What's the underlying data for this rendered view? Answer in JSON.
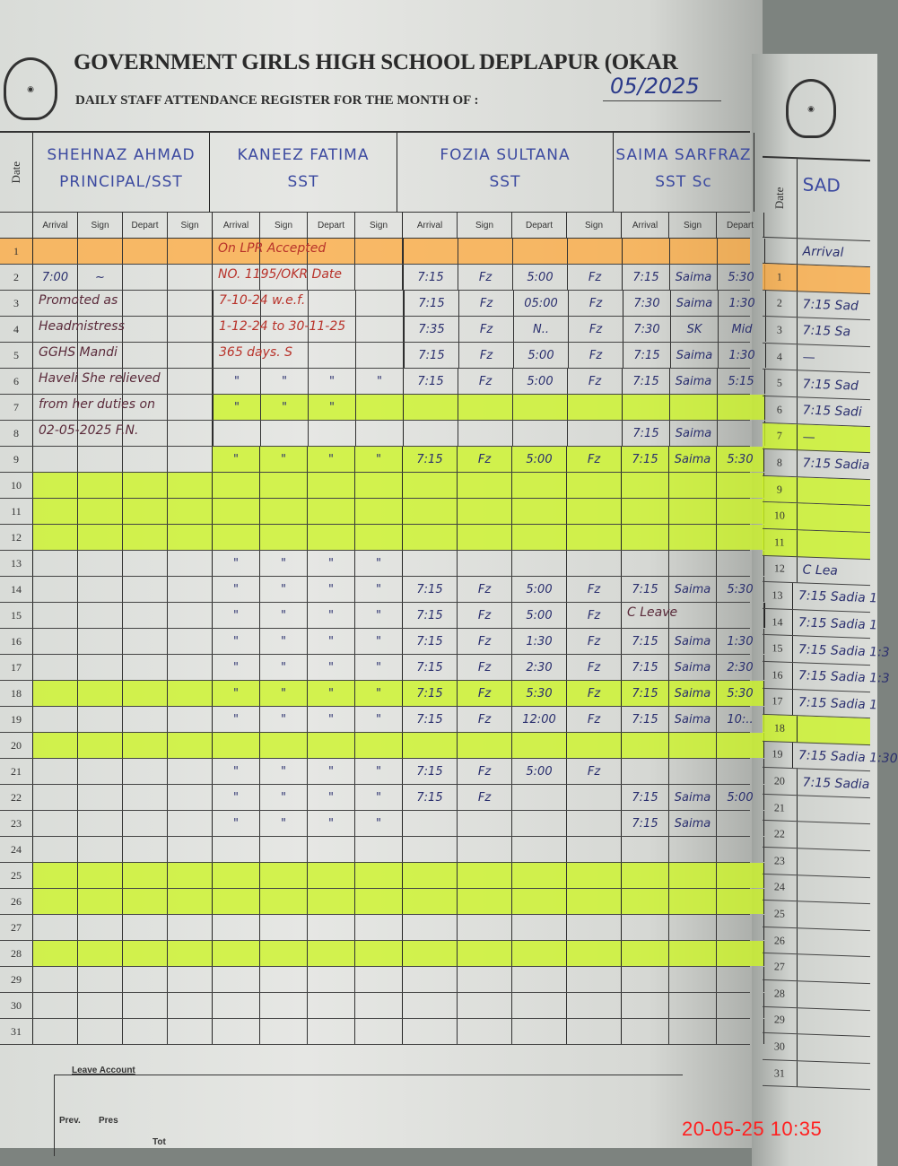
{
  "header": {
    "title": "GOVERNMENT GIRLS HIGH SCHOOL DEPLAPUR (OKAR",
    "subtitle": "DAILY STAFF ATTENDANCE REGISTER  FOR THE MONTH OF :",
    "month": "05/2025",
    "logo_icon": "school-crest-icon"
  },
  "table": {
    "date_label": "Date",
    "sub_labels": [
      "Arrival",
      "Sign",
      "Depart",
      "Sign"
    ],
    "staff": [
      {
        "name": "SHEHNAZ AHMAD",
        "designation": "PRINCIPAL/SST"
      },
      {
        "name": "KANEEZ FATIMA",
        "designation": "SST"
      },
      {
        "name": "FOZIA SULTANA",
        "designation": "SST"
      },
      {
        "name": "SAIMA SARFRAZ",
        "designation": "SST Sc"
      }
    ],
    "rows": [
      {
        "date": "1",
        "hl": "orange",
        "g": [
          {},
          {
            "note": "On LPR Accepted"
          },
          {},
          {}
        ]
      },
      {
        "date": "2",
        "g": [
          {
            "cells": [
              "7:00",
              "~",
              "",
              ""
            ]
          },
          {
            "note": "NO. 1195/OKR Date"
          },
          {
            "cells": [
              "7:15",
              "Fz",
              "5:00",
              "Fz"
            ]
          },
          {
            "cells": [
              "7:15",
              "Saima",
              "5:30"
            ]
          }
        ]
      },
      {
        "date": "3",
        "g": [
          {
            "note": "Promoted as"
          },
          {
            "note": "7-10-24     w.e.f."
          },
          {
            "cells": [
              "7:15",
              "Fz",
              "05:00",
              "Fz"
            ]
          },
          {
            "cells": [
              "7:30",
              "Saima",
              "1:30"
            ]
          }
        ]
      },
      {
        "date": "4",
        "g": [
          {
            "note": "Headmistress"
          },
          {
            "note": "1-12-24 to 30-11-25"
          },
          {
            "cells": [
              "7:35",
              "Fz",
              "N..",
              "Fz"
            ]
          },
          {
            "cells": [
              "7:30",
              "SK",
              "Mid"
            ]
          }
        ]
      },
      {
        "date": "5",
        "g": [
          {
            "note": "GGHS Mandi"
          },
          {
            "note": "365 days.   S"
          },
          {
            "cells": [
              "7:15",
              "Fz",
              "5:00",
              "Fz"
            ]
          },
          {
            "cells": [
              "7:15",
              "Saima",
              "1:30"
            ]
          }
        ]
      },
      {
        "date": "6",
        "g": [
          {
            "note": "Haveli She relieved"
          },
          {
            "cells": [
              "\"",
              "\"",
              "\"",
              "\""
            ]
          },
          {
            "cells": [
              "7:15",
              "Fz",
              "5:00",
              "Fz"
            ]
          },
          {
            "cells": [
              "7:15",
              "Saima",
              "5:15"
            ]
          }
        ]
      },
      {
        "date": "7",
        "hl": "green-part",
        "g": [
          {
            "note": "from her duties on"
          },
          {
            "cells": [
              "\"",
              "\"",
              "\"",
              ""
            ]
          },
          {},
          {}
        ]
      },
      {
        "date": "8",
        "g": [
          {
            "note": "02-05-2025 F.N."
          },
          {},
          {},
          {
            "cells": [
              "7:15",
              "Saima",
              ""
            ]
          }
        ]
      },
      {
        "date": "9",
        "hl": "green-part",
        "g": [
          {},
          {
            "cells": [
              "\"",
              "\"",
              "\"",
              "\""
            ]
          },
          {
            "cells": [
              "7:15",
              "Fz",
              "5:00",
              "Fz"
            ]
          },
          {
            "cells": [
              "7:15",
              "Saima",
              "5:30"
            ]
          }
        ]
      },
      {
        "date": "10",
        "hl": "green",
        "g": [
          {},
          {},
          {},
          {}
        ]
      },
      {
        "date": "11",
        "hl": "green",
        "g": [
          {},
          {},
          {},
          {}
        ]
      },
      {
        "date": "12",
        "hl": "green",
        "g": [
          {},
          {},
          {},
          {}
        ]
      },
      {
        "date": "13",
        "g": [
          {},
          {
            "cells": [
              "\"",
              "\"",
              "\"",
              "\""
            ]
          },
          {},
          {}
        ]
      },
      {
        "date": "14",
        "g": [
          {},
          {
            "cells": [
              "\"",
              "\"",
              "\"",
              "\""
            ]
          },
          {
            "cells": [
              "7:15",
              "Fz",
              "5:00",
              "Fz"
            ]
          },
          {
            "cells": [
              "7:15",
              "Saima",
              "5:30"
            ]
          }
        ]
      },
      {
        "date": "15",
        "g": [
          {},
          {
            "cells": [
              "\"",
              "\"",
              "\"",
              "\""
            ]
          },
          {
            "cells": [
              "7:15",
              "Fz",
              "5:00",
              "Fz"
            ]
          },
          {
            "note": "C Leave"
          }
        ]
      },
      {
        "date": "16",
        "g": [
          {},
          {
            "cells": [
              "\"",
              "\"",
              "\"",
              "\""
            ]
          },
          {
            "cells": [
              "7:15",
              "Fz",
              "1:30",
              "Fz"
            ]
          },
          {
            "cells": [
              "7:15",
              "Saima",
              "1:30"
            ]
          }
        ]
      },
      {
        "date": "17",
        "g": [
          {},
          {
            "cells": [
              "\"",
              "\"",
              "\"",
              "\""
            ]
          },
          {
            "cells": [
              "7:15",
              "Fz",
              "2:30",
              "Fz"
            ]
          },
          {
            "cells": [
              "7:15",
              "Saima",
              "2:30"
            ]
          }
        ]
      },
      {
        "date": "18",
        "hl": "green",
        "g": [
          {},
          {
            "cells": [
              "\"",
              "\"",
              "\"",
              "\""
            ]
          },
          {
            "cells": [
              "7:15",
              "Fz",
              "5:30",
              "Fz"
            ]
          },
          {
            "cells": [
              "7:15",
              "Saima",
              "5:30"
            ]
          }
        ]
      },
      {
        "date": "19",
        "g": [
          {},
          {
            "cells": [
              "\"",
              "\"",
              "\"",
              "\""
            ]
          },
          {
            "cells": [
              "7:15",
              "Fz",
              "12:00",
              "Fz"
            ]
          },
          {
            "cells": [
              "7:15",
              "Saima",
              "10:.."
            ]
          }
        ]
      },
      {
        "date": "20",
        "hl": "green",
        "g": [
          {},
          {},
          {},
          {}
        ]
      },
      {
        "date": "21",
        "g": [
          {},
          {
            "cells": [
              "\"",
              "\"",
              "\"",
              "\""
            ]
          },
          {
            "cells": [
              "7:15",
              "Fz",
              "5:00",
              "Fz"
            ]
          },
          {}
        ]
      },
      {
        "date": "22",
        "g": [
          {},
          {
            "cells": [
              "\"",
              "\"",
              "\"",
              "\""
            ]
          },
          {
            "cells": [
              "7:15",
              "Fz",
              "",
              ""
            ]
          },
          {
            "cells": [
              "7:15",
              "Saima",
              "5:00"
            ]
          }
        ]
      },
      {
        "date": "23",
        "g": [
          {},
          {
            "cells": [
              "\"",
              "\"",
              "\"",
              "\""
            ]
          },
          {},
          {
            "cells": [
              "7:15",
              "Saima",
              ""
            ]
          }
        ]
      },
      {
        "date": "24",
        "g": [
          {},
          {},
          {},
          {}
        ]
      },
      {
        "date": "25",
        "hl": "green",
        "g": [
          {},
          {},
          {},
          {}
        ]
      },
      {
        "date": "26",
        "hl": "green",
        "g": [
          {},
          {},
          {},
          {}
        ]
      },
      {
        "date": "27",
        "g": [
          {},
          {},
          {},
          {}
        ]
      },
      {
        "date": "28",
        "hl": "green",
        "g": [
          {},
          {},
          {},
          {}
        ]
      },
      {
        "date": "29",
        "g": [
          {},
          {},
          {},
          {}
        ]
      },
      {
        "date": "30",
        "g": [
          {},
          {},
          {},
          {}
        ]
      },
      {
        "date": "31",
        "g": [
          {},
          {},
          {},
          {}
        ]
      }
    ]
  },
  "right_page": {
    "date_label": "Date",
    "staff_name": "SAD",
    "arrival_label": "Arrival",
    "rows": [
      {
        "date": "1",
        "hl": "orange",
        "v": ""
      },
      {
        "date": "2",
        "v": "7:15 Sad"
      },
      {
        "date": "3",
        "v": "7:15 Sa"
      },
      {
        "date": "4",
        "v": "—"
      },
      {
        "date": "5",
        "v": "7:15 Sad"
      },
      {
        "date": "6",
        "v": "7:15 Sadi"
      },
      {
        "date": "7",
        "hl": "green",
        "v": "—"
      },
      {
        "date": "8",
        "v": "7:15 Sadia"
      },
      {
        "date": "9",
        "hl": "green",
        "v": ""
      },
      {
        "date": "10",
        "hl": "green",
        "v": ""
      },
      {
        "date": "11",
        "hl": "green",
        "v": ""
      },
      {
        "date": "12",
        "v": "C Lea"
      },
      {
        "date": "13",
        "v": "7:15 Sadia 1"
      },
      {
        "date": "14",
        "v": "7:15 Sadia 1"
      },
      {
        "date": "15",
        "v": "7:15 Sadia 1:3"
      },
      {
        "date": "16",
        "v": "7:15 Sadia 1:3"
      },
      {
        "date": "17",
        "v": "7:15 Sadia 1"
      },
      {
        "date": "18",
        "hl": "green",
        "v": ""
      },
      {
        "date": "19",
        "v": "7:15 Sadia 1:30"
      },
      {
        "date": "20",
        "v": "7:15 Sadia"
      },
      {
        "date": "21",
        "v": ""
      },
      {
        "date": "22",
        "v": ""
      },
      {
        "date": "23",
        "v": ""
      },
      {
        "date": "24",
        "v": ""
      },
      {
        "date": "25",
        "v": ""
      },
      {
        "date": "26",
        "v": ""
      },
      {
        "date": "27",
        "v": ""
      },
      {
        "date": "28",
        "v": ""
      },
      {
        "date": "29",
        "v": ""
      },
      {
        "date": "30",
        "v": ""
      },
      {
        "date": "31",
        "v": ""
      }
    ]
  },
  "leave_account": {
    "title": "Leave Account",
    "columns": [
      "Prev.",
      "Pres",
      "Tot"
    ]
  },
  "timestamp": "20-05-25  10:35",
  "colors": {
    "orange_highlight": "#ffaa3c",
    "green_highlight": "#cdf528",
    "ink_blue": "#2b3a8a",
    "timestamp_red": "#ff2020"
  }
}
